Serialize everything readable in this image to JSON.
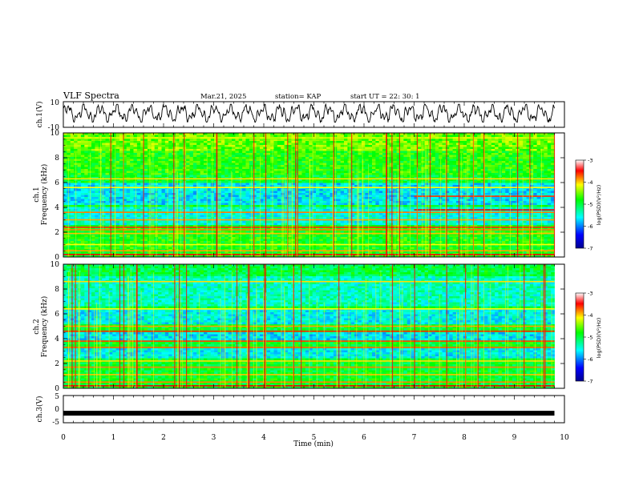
{
  "header": {
    "title": "VLF Spectra",
    "date": "Mar.21, 2025",
    "station": "station= KAP",
    "start": "start  UT =   22: 30: 1"
  },
  "chart_data": [
    {
      "type": "line",
      "name": "ch1-waveform",
      "ylabel": "ch.1(V)",
      "ylim": [
        -10,
        10
      ],
      "yticks": [
        "10",
        "-10"
      ],
      "xlim": [
        0,
        10
      ],
      "description_values": {
        "amplitude_min": -6,
        "amplitude_max": 8
      }
    },
    {
      "type": "heatmap",
      "name": "ch1-spectrogram",
      "ylabel": "ch.1\nFrequency (kHz)",
      "ylabel_parts": [
        "ch.1",
        "Frequency (kHz)"
      ],
      "ylim": [
        0,
        10
      ],
      "yticks": [
        "0",
        "2",
        "4",
        "6",
        "8",
        "10"
      ],
      "xlim": [
        0,
        9.8
      ],
      "colorbar": {
        "label": "log(PSD)(V²/Hz)",
        "range": [
          -7,
          -3
        ],
        "ticks": [
          "-3",
          "-4",
          "-5",
          "-6",
          "-7"
        ]
      }
    },
    {
      "type": "heatmap",
      "name": "ch2-spectrogram",
      "ylabel": "ch.2\nFrequency (kHz)",
      "ylabel_parts": [
        "ch.2",
        "Frequency (kHz)"
      ],
      "ylim": [
        0,
        10
      ],
      "yticks": [
        "0",
        "2",
        "4",
        "6",
        "8",
        "10"
      ],
      "xlim": [
        0,
        9.8
      ],
      "colorbar": {
        "label": "log(PSD)(V²/Hz)",
        "range": [
          -7,
          -3
        ],
        "ticks": [
          "-3",
          "-4",
          "-5",
          "-6",
          "-7"
        ]
      }
    },
    {
      "type": "line",
      "name": "ch3-waveform",
      "ylabel": "ch.3(V)",
      "ylim": [
        -5,
        5
      ],
      "yticks": [
        "5",
        "0",
        "-5"
      ],
      "xlim": [
        0,
        10
      ],
      "level": -1.5
    }
  ],
  "xaxis": {
    "label": "Time (min)",
    "range": [
      0,
      10
    ],
    "ticks": [
      "0",
      "1",
      "2",
      "3",
      "4",
      "5",
      "6",
      "7",
      "8",
      "9",
      "10"
    ]
  },
  "colors": {
    "scale": [
      "#00008f",
      "#0000ff",
      "#00ffff",
      "#00ff00",
      "#ffff00",
      "#ff0000",
      "#8f0000"
    ]
  }
}
